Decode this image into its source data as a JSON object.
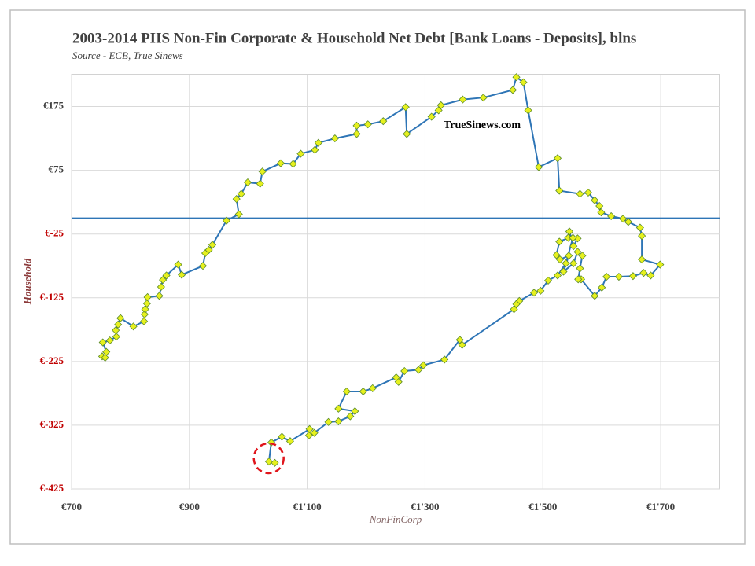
{
  "chart_data": {
    "type": "line",
    "title": "2003-2014 PIIS Non-Fin Corporate & Household Net Debt [Bank Loans - Deposits], blns",
    "subtitle": "Source - ECB, True Sinews",
    "annotation": "TrueSinews.com",
    "x_label": "NonFinCorp",
    "y_label": "Household",
    "color": "#2e75b6",
    "marker_color": "#e6f01e",
    "marker_edge": "#5a8a2a",
    "highlight_color": "#e0161c",
    "negative_tick_color": "#c00000",
    "grid": true,
    "hlines": [
      0
    ],
    "xlim": [
      700,
      1800
    ],
    "ylim": [
      -425,
      225
    ],
    "xticks": [
      {
        "value": 700,
        "label": "€700"
      },
      {
        "value": 900,
        "label": "€900"
      },
      {
        "value": 1100,
        "label": "€1'100"
      },
      {
        "value": 1300,
        "label": "€1'300"
      },
      {
        "value": 1500,
        "label": "€1'500"
      },
      {
        "value": 1700,
        "label": "€1'700"
      }
    ],
    "yticks": [
      {
        "value": 175,
        "label": "€175"
      },
      {
        "value": 75,
        "label": "€75"
      },
      {
        "value": -25,
        "label": "€-25"
      },
      {
        "value": -125,
        "label": "€-125"
      },
      {
        "value": -225,
        "label": "€-225"
      },
      {
        "value": -325,
        "label": "€-325"
      },
      {
        "value": -425,
        "label": "€-425"
      }
    ],
    "x": [
      752,
      757,
      759,
      753,
      765,
      776,
      775,
      779,
      783,
      805,
      823,
      824,
      825,
      828,
      829,
      849,
      852,
      855,
      861,
      881,
      887,
      923,
      927,
      933,
      939,
      963,
      984,
      980,
      988,
      999,
      1020,
      1024,
      1055,
      1076,
      1089,
      1113,
      1119,
      1147,
      1184,
      1184,
      1203,
      1229,
      1267,
      1269,
      1311,
      1323,
      1327,
      1364,
      1399,
      1449,
      1455,
      1467,
      1475,
      1493,
      1525,
      1528,
      1563,
      1577,
      1588,
      1596,
      1599,
      1616,
      1636,
      1645,
      1665,
      1668,
      1668,
      1699,
      1683,
      1671,
      1653,
      1629,
      1608,
      1600,
      1588,
      1565,
      1560,
      1563,
      1567,
      1559,
      1552,
      1535,
      1544,
      1529,
      1523,
      1528,
      1543,
      1545,
      1552,
      1559,
      1551,
      1539,
      1525,
      1509,
      1496,
      1485,
      1460,
      1455,
      1451,
      1363,
      1359,
      1333,
      1297,
      1289,
      1265,
      1255,
      1251,
      1211,
      1195,
      1167,
      1153,
      1181,
      1173,
      1153,
      1136,
      1112,
      1103,
      1104,
      1071,
      1057,
      1039,
      1035,
      1045
    ],
    "values": [
      -217,
      -219,
      -210,
      -195,
      -192,
      -186,
      -176,
      -167,
      -157,
      -170,
      -162,
      -151,
      -143,
      -134,
      -124,
      -122,
      -108,
      -97,
      -90,
      -73,
      -89,
      -75,
      -55,
      -50,
      -42,
      -4,
      6,
      30,
      38,
      56,
      54,
      73,
      86,
      85,
      101,
      107,
      118,
      125,
      132,
      145,
      147,
      152,
      174,
      132,
      159,
      169,
      177,
      186,
      189,
      201,
      221,
      213,
      169,
      80,
      94,
      43,
      38,
      40,
      28,
      19,
      9,
      3,
      -1,
      -6,
      -15,
      -28,
      -65,
      -73,
      -90,
      -86,
      -91,
      -92,
      -92,
      -109,
      -122,
      -96,
      -96,
      -79,
      -59,
      -53,
      -71,
      -84,
      -59,
      -65,
      -58,
      -37,
      -31,
      -21,
      -44,
      -32,
      -31,
      -71,
      -90,
      -98,
      -114,
      -117,
      -130,
      -135,
      -143,
      -199,
      -191,
      -222,
      -231,
      -238,
      -240,
      -257,
      -250,
      -267,
      -272,
      -272,
      -299,
      -303,
      -311,
      -319,
      -320,
      -337,
      -341,
      -331,
      -350,
      -343,
      -352,
      -382,
      -384
    ]
  }
}
